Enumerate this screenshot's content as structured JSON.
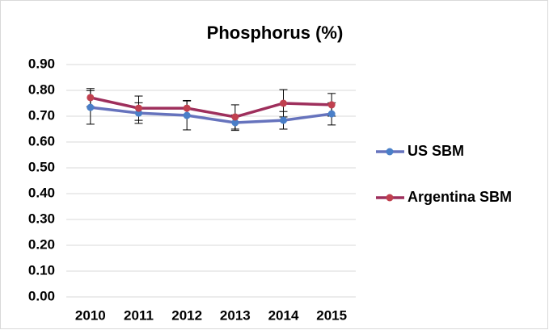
{
  "chart_data": {
    "type": "line",
    "title": "Phosphorus (%)",
    "categories": [
      "2010",
      "2011",
      "2012",
      "2013",
      "2014",
      "2015"
    ],
    "series": [
      {
        "name": "US SBM",
        "color": "#6673bd",
        "marker_color": "#4a7fc8",
        "values": [
          0.734,
          0.712,
          0.703,
          0.675,
          0.684,
          0.709
        ],
        "errors": [
          0.065,
          0.04,
          0.056,
          0.03,
          0.034,
          0.043
        ]
      },
      {
        "name": "Argentina SBM",
        "color": "#9e2f5c",
        "marker_color": "#c0404f",
        "values": [
          0.772,
          0.731,
          0.731,
          0.697,
          0.75,
          0.744
        ],
        "errors": [
          0.035,
          0.047,
          0.03,
          0.047,
          0.053,
          0.044
        ]
      }
    ],
    "ylim": [
      0,
      0.9
    ],
    "yticks": [
      {
        "value": 0,
        "label": "0.00"
      },
      {
        "value": 0.1,
        "label": "0.10"
      },
      {
        "value": 0.2,
        "label": "0.20"
      },
      {
        "value": 0.3,
        "label": "0.30"
      },
      {
        "value": 0.4,
        "label": "0.40"
      },
      {
        "value": 0.5,
        "label": "0.50"
      },
      {
        "value": 0.6,
        "label": "0.60"
      },
      {
        "value": 0.7,
        "label": "0.70"
      },
      {
        "value": 0.8,
        "label": "0.80"
      },
      {
        "value": 0.9,
        "label": "0.90"
      }
    ],
    "grid": true,
    "legend": "right"
  }
}
